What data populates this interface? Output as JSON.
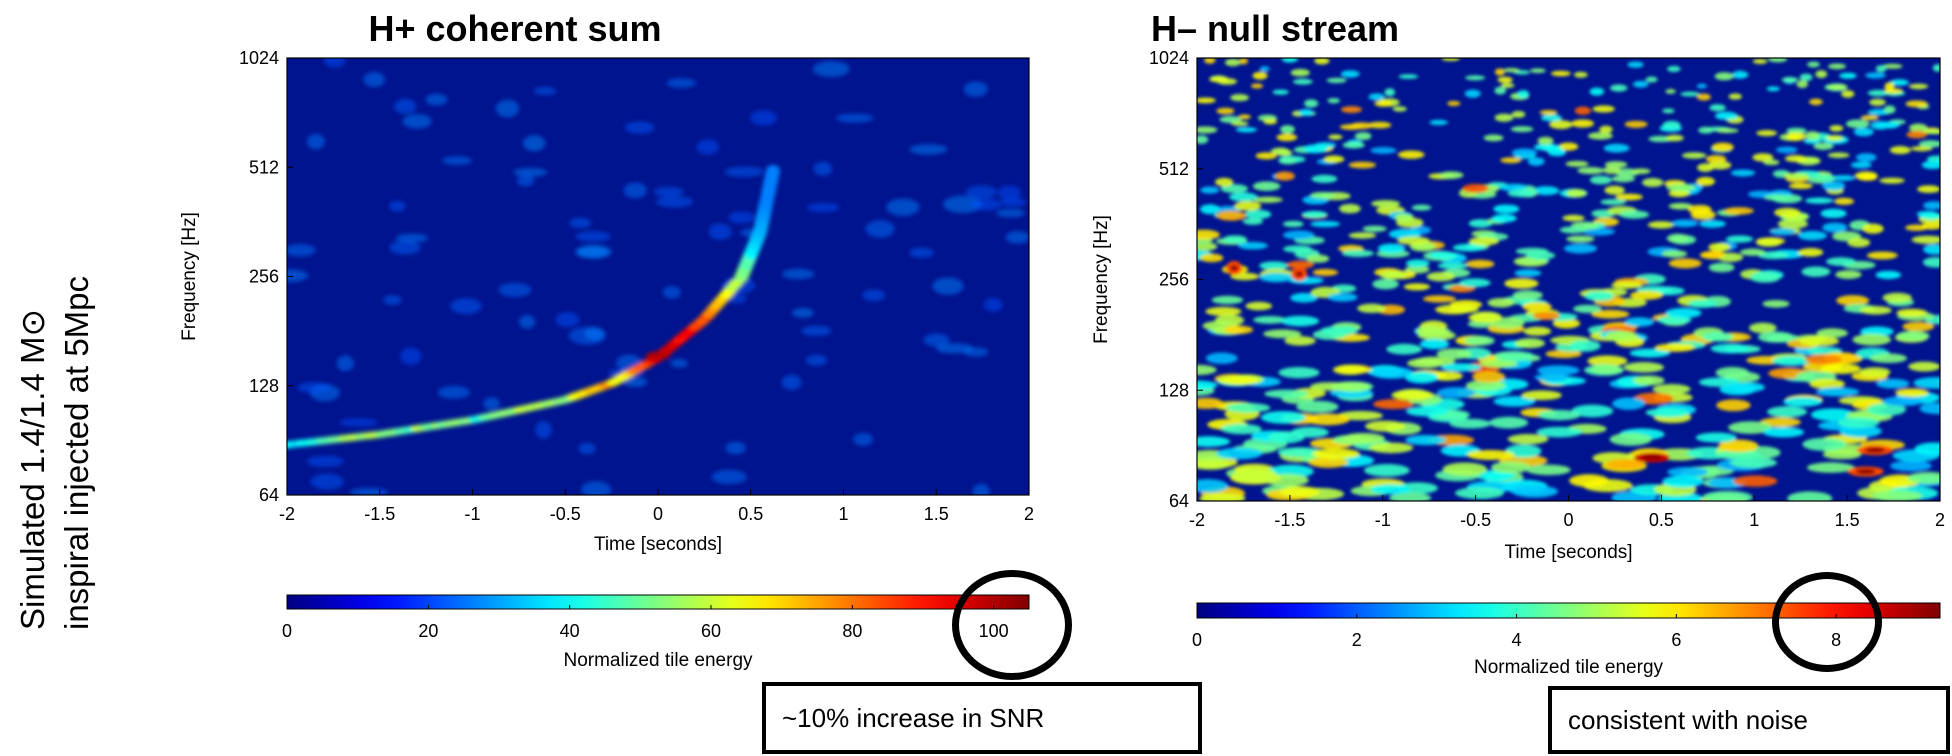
{
  "side_label": {
    "line1": "Simulated 1.4/1.4 M⊙",
    "line2": "inspiral injected at 5Mpc"
  },
  "chart_data": [
    {
      "type": "heatmap",
      "title": "H+ coherent sum",
      "xlabel": "Time [seconds]",
      "ylabel": "Frequency [Hz]",
      "xlim": [
        -2,
        2
      ],
      "ylim": [
        64,
        1024
      ],
      "y_scale": "log2",
      "x_ticks": [
        -2,
        -1.5,
        -1,
        -0.5,
        0,
        0.5,
        1,
        1.5,
        2
      ],
      "x_tick_labels": [
        "-2",
        "-1.5",
        "-1",
        "-0.5",
        "0",
        "0.5",
        "1",
        "1.5",
        "2"
      ],
      "y_ticks": [
        64,
        128,
        256,
        512,
        1024
      ],
      "y_tick_labels": [
        "64",
        "128",
        "256",
        "512",
        "1024"
      ],
      "chirp_track": [
        [
          -2.0,
          88
        ],
        [
          -1.5,
          94
        ],
        [
          -1.0,
          103
        ],
        [
          -0.5,
          117
        ],
        [
          -0.25,
          130
        ],
        [
          0.0,
          153
        ],
        [
          0.25,
          195
        ],
        [
          0.45,
          255
        ],
        [
          0.55,
          340
        ],
        [
          0.62,
          500
        ]
      ],
      "peak": [
        0.0,
        155
      ],
      "colorbar": {
        "label": "Normalized tile energy",
        "range": [
          0,
          105
        ],
        "ticks": [
          0,
          20,
          40,
          60,
          80,
          100
        ],
        "tick_labels": [
          "0",
          "20",
          "40",
          "60",
          "80",
          "100"
        ],
        "circled_value": 100
      },
      "annotation": "~10% increase in SNR"
    },
    {
      "type": "heatmap",
      "title": "H– null stream",
      "xlabel": "Time [seconds]",
      "ylabel": "Frequency [Hz]",
      "xlim": [
        -2,
        2
      ],
      "ylim": [
        64,
        1024
      ],
      "y_scale": "log2",
      "x_ticks": [
        -2,
        -1.5,
        -1,
        -0.5,
        0,
        0.5,
        1,
        1.5,
        2
      ],
      "x_tick_labels": [
        "-2",
        "-1.5",
        "-1",
        "-0.5",
        "0",
        "0.5",
        "1",
        "1.5",
        "2"
      ],
      "y_ticks": [
        64,
        128,
        256,
        512,
        1024
      ],
      "y_tick_labels": [
        "64",
        "128",
        "256",
        "512",
        "1024"
      ],
      "hot_spots": [
        [
          0.45,
          84
        ],
        [
          1.65,
          88
        ],
        [
          1.6,
          77
        ],
        [
          -1.8,
          275
        ],
        [
          -1.45,
          265
        ]
      ],
      "colorbar": {
        "label": "Normalized tile energy",
        "range": [
          0,
          9.3
        ],
        "ticks": [
          0,
          2,
          4,
          6,
          8
        ],
        "tick_labels": [
          "0",
          "2",
          "4",
          "6",
          "8"
        ],
        "circled_value": 8
      },
      "annotation": "consistent with noise"
    }
  ],
  "colors": {
    "background_field": "#00148f",
    "colormap": [
      "#00008f",
      "#0000ff",
      "#00ffff",
      "#ffff00",
      "#ff0000",
      "#800000"
    ]
  }
}
